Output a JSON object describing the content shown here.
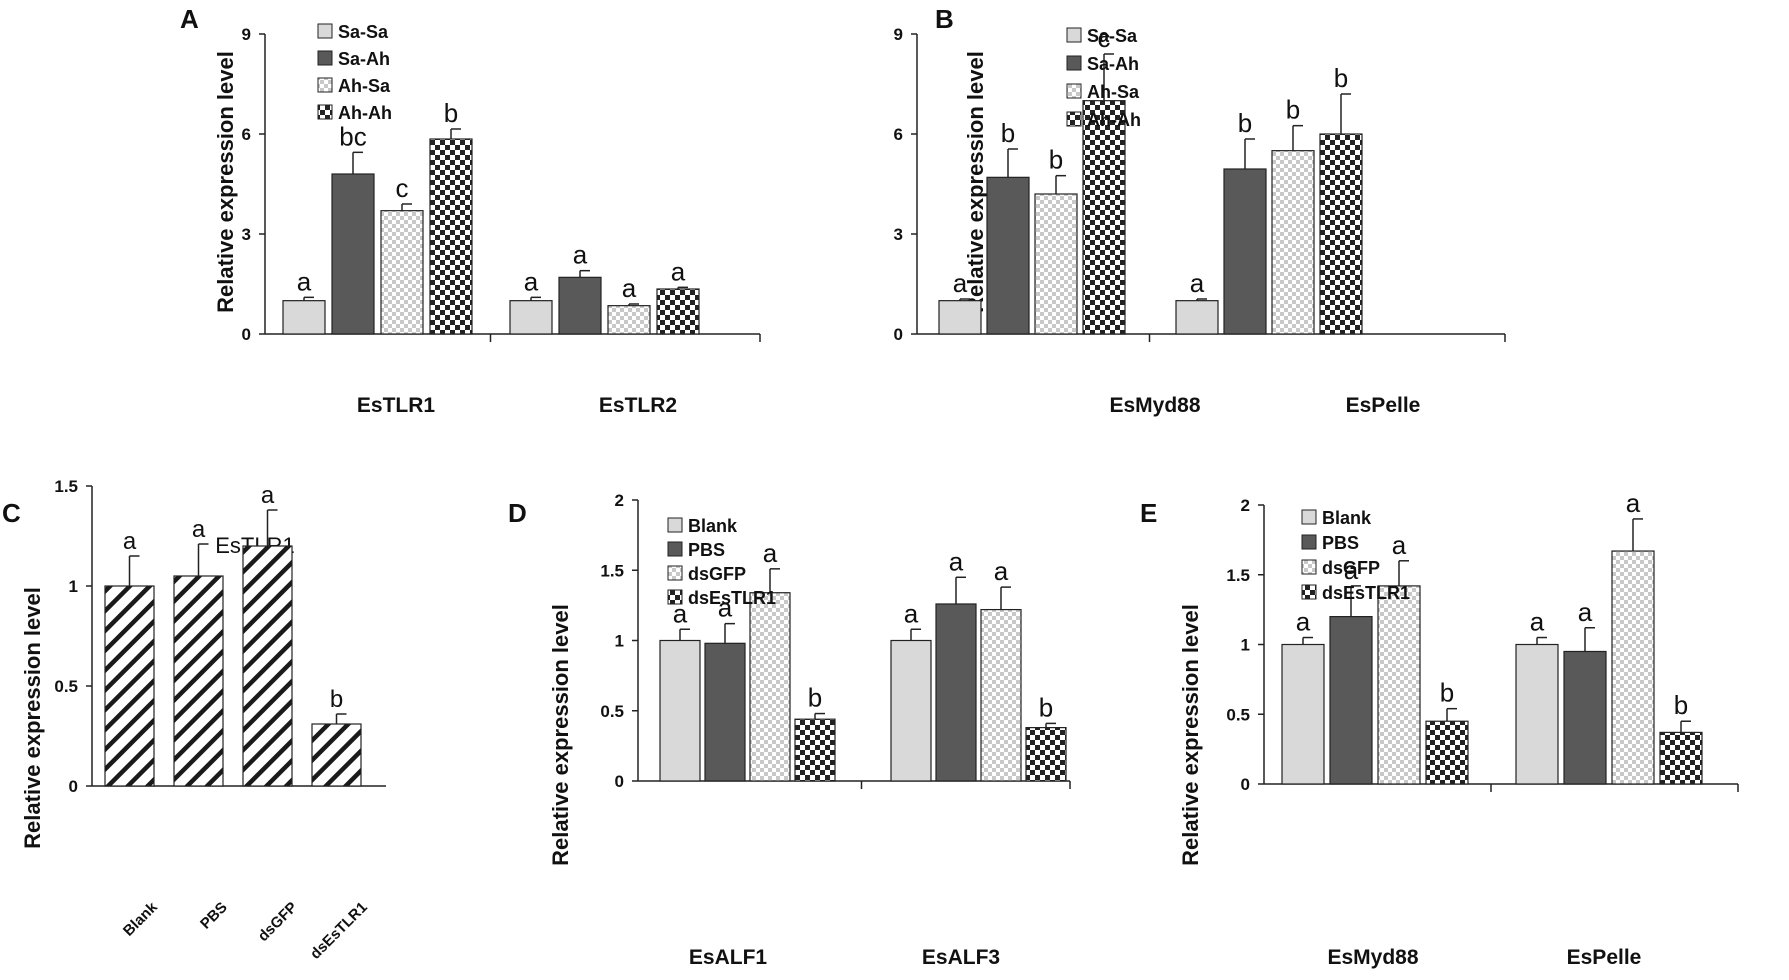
{
  "colors": {
    "light": "#d9d9d9",
    "dark": "#595959",
    "pattern_dots": "#c8c8c8",
    "pattern_check": "#222222",
    "axis": "#222222"
  },
  "chart_data": [
    {
      "id": "A",
      "type": "bar",
      "panel_label": "A",
      "title": "",
      "ylabel": "Relative expression level",
      "xlabel": "",
      "ylim": [
        0,
        9
      ],
      "yticks": [
        0,
        3,
        6,
        9
      ],
      "ytick_labels": [
        "0",
        "3",
        "6",
        "9"
      ],
      "categories": [
        "EsTLR1",
        "EsTLR2"
      ],
      "legend_position": "top-left",
      "series": [
        {
          "name": "Sa-Sa",
          "style": "light",
          "values": [
            1.0,
            1.0
          ],
          "errors": [
            0.1,
            0.1
          ],
          "sig": [
            "a",
            "a"
          ]
        },
        {
          "name": "Sa-Ah",
          "style": "dark",
          "values": [
            4.8,
            1.7
          ],
          "errors": [
            0.65,
            0.2
          ],
          "sig": [
            "bc",
            "a"
          ]
        },
        {
          "name": "Ah-Sa",
          "style": "dots",
          "values": [
            3.7,
            0.85
          ],
          "errors": [
            0.2,
            0.05
          ],
          "sig": [
            "c",
            "a"
          ]
        },
        {
          "name": "Ah-Ah",
          "style": "check",
          "values": [
            5.85,
            1.35
          ],
          "errors": [
            0.3,
            0.05
          ],
          "sig": [
            "b",
            "a"
          ]
        }
      ]
    },
    {
      "id": "B",
      "type": "bar",
      "panel_label": "B",
      "title": "",
      "ylabel": "Relative expression level",
      "xlabel": "",
      "ylim": [
        0,
        9
      ],
      "yticks": [
        0,
        3,
        6,
        9
      ],
      "ytick_labels": [
        "0",
        "3",
        "6",
        "9"
      ],
      "categories": [
        "EsMyd88",
        "EsPelle"
      ],
      "legend_position": "top-left",
      "series": [
        {
          "name": "Sa-Sa",
          "style": "light",
          "values": [
            1.0,
            1.0
          ],
          "errors": [
            0.05,
            0.05
          ],
          "sig": [
            "a",
            "a"
          ]
        },
        {
          "name": "Sa-Ah",
          "style": "dark",
          "values": [
            4.7,
            4.95
          ],
          "errors": [
            0.85,
            0.9
          ],
          "sig": [
            "b",
            "b"
          ]
        },
        {
          "name": "Ah-Sa",
          "style": "dots",
          "values": [
            4.2,
            5.5
          ],
          "errors": [
            0.55,
            0.75
          ],
          "sig": [
            "b",
            "b"
          ]
        },
        {
          "name": "Ah-Ah",
          "style": "check",
          "values": [
            7.0,
            6.0
          ],
          "errors": [
            1.4,
            1.2
          ],
          "sig": [
            "c",
            "b"
          ]
        }
      ]
    },
    {
      "id": "C",
      "type": "bar",
      "panel_label": "C",
      "title": "EsTLR1",
      "ylabel": "Relative expression level",
      "xlabel": "",
      "ylim": [
        0,
        1.5
      ],
      "yticks": [
        0,
        0.5,
        1,
        1.5
      ],
      "ytick_labels": [
        "0",
        "0.5",
        "1",
        "1.5"
      ],
      "categories": [
        "Blank",
        "PBS",
        "dsGFP",
        "dsEsTLR1"
      ],
      "series": [
        {
          "name": "EsTLR1",
          "style": "hatch",
          "values": [
            1.0,
            1.05,
            1.2,
            0.31
          ],
          "errors": [
            0.15,
            0.16,
            0.18,
            0.05
          ],
          "sig": [
            "a",
            "a",
            "a",
            "b"
          ]
        }
      ]
    },
    {
      "id": "D",
      "type": "bar",
      "panel_label": "D",
      "title": "",
      "ylabel": "Relative expression level",
      "xlabel": "",
      "ylim": [
        0,
        2
      ],
      "yticks": [
        0,
        0.5,
        1,
        1.5,
        2
      ],
      "ytick_labels": [
        "0",
        "0.5",
        "1",
        "1.5",
        "2"
      ],
      "categories": [
        "EsALF1",
        "EsALF3"
      ],
      "legend_position": "top-left",
      "series": [
        {
          "name": "Blank",
          "style": "light",
          "values": [
            1.0,
            1.0
          ],
          "errors": [
            0.08,
            0.08
          ],
          "sig": [
            "a",
            "a"
          ]
        },
        {
          "name": "PBS",
          "style": "dark",
          "values": [
            0.98,
            1.26
          ],
          "errors": [
            0.14,
            0.19
          ],
          "sig": [
            "a",
            "a"
          ]
        },
        {
          "name": "dsGFP",
          "style": "dots",
          "values": [
            1.34,
            1.22
          ],
          "errors": [
            0.17,
            0.16
          ],
          "sig": [
            "a",
            "a"
          ]
        },
        {
          "name": "dsEsTLR1",
          "style": "check",
          "values": [
            0.44,
            0.38
          ],
          "errors": [
            0.04,
            0.03
          ],
          "sig": [
            "b",
            "b"
          ]
        }
      ]
    },
    {
      "id": "E",
      "type": "bar",
      "panel_label": "E",
      "title": "",
      "ylabel": "Relative expression level",
      "xlabel": "",
      "ylim": [
        0,
        2
      ],
      "yticks": [
        0,
        0.5,
        1,
        1.5,
        2
      ],
      "ytick_labels": [
        "0",
        "0.5",
        "1",
        "1.5",
        "2"
      ],
      "categories": [
        "EsMyd88",
        "EsPelle"
      ],
      "legend_position": "top-left",
      "series": [
        {
          "name": "Blank",
          "style": "light",
          "values": [
            1.0,
            1.0
          ],
          "errors": [
            0.05,
            0.05
          ],
          "sig": [
            "a",
            "a"
          ]
        },
        {
          "name": "PBS",
          "style": "dark",
          "values": [
            1.2,
            0.95
          ],
          "errors": [
            0.22,
            0.17
          ],
          "sig": [
            "a",
            "a"
          ]
        },
        {
          "name": "dsGFP",
          "style": "dots",
          "values": [
            1.42,
            1.67
          ],
          "errors": [
            0.18,
            0.23
          ],
          "sig": [
            "a",
            "a"
          ]
        },
        {
          "name": "dsEsTLR1",
          "style": "check",
          "values": [
            0.45,
            0.37
          ],
          "errors": [
            0.09,
            0.08
          ],
          "sig": [
            "b",
            "b"
          ]
        }
      ]
    }
  ]
}
